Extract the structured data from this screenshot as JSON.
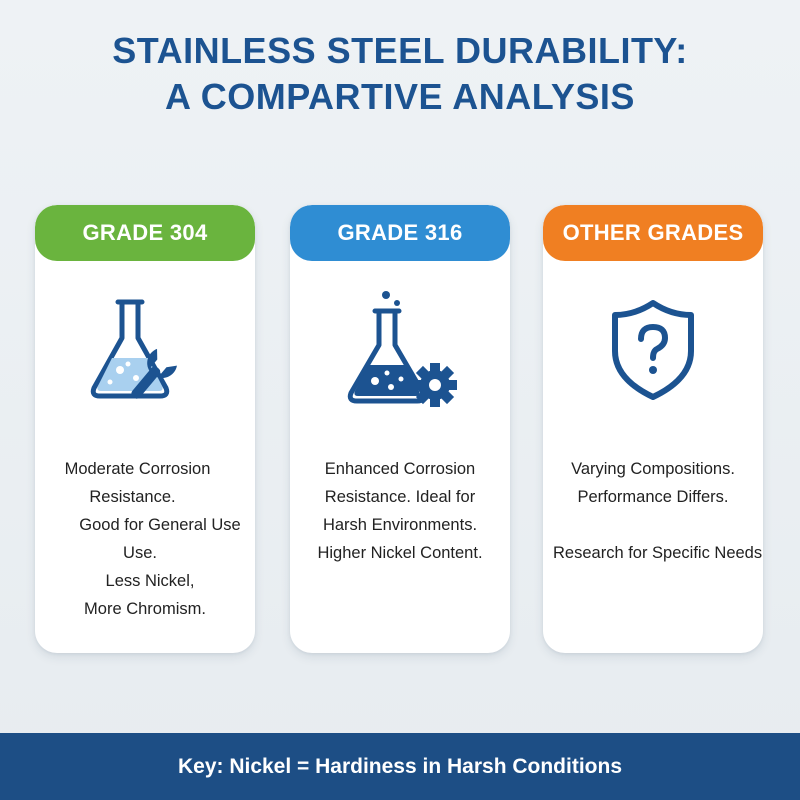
{
  "title": {
    "line1": "STAINLESS STEEL DURABILITY:",
    "line2": "A COMPARTIVE ANALYSIS"
  },
  "cards": [
    {
      "header": "GRADE 304",
      "icon": "flask-wrench-icon",
      "color": "#6ab43e",
      "lines": [
        "Moderate Corrosion",
        "Resistance.",
        "Good for General Use",
        "Use.",
        "Less Nickel,",
        "More Chromism."
      ]
    },
    {
      "header": "GRADE 316",
      "icon": "flask-gear-icon",
      "color": "#2f8dd3",
      "lines": [
        "Enhanced Corrosion",
        "Resistance. Ideal for",
        "Harsh Environments.",
        "Higher Nickel Content."
      ]
    },
    {
      "header": "OTHER GRADES",
      "icon": "shield-question-icon",
      "color": "#f07f22",
      "lines": [
        "Varying Compositions.",
        "Performance Differs.",
        "Research for Specific Needs"
      ]
    }
  ],
  "footer": {
    "key_text": "Key: Nickel = Hardiness in Harsh Conditions"
  },
  "colors": {
    "title": "#1c5391",
    "footer_bg": "#1d4e85",
    "icon_stroke": "#1c5391",
    "liquid": "#a9d0ef"
  }
}
